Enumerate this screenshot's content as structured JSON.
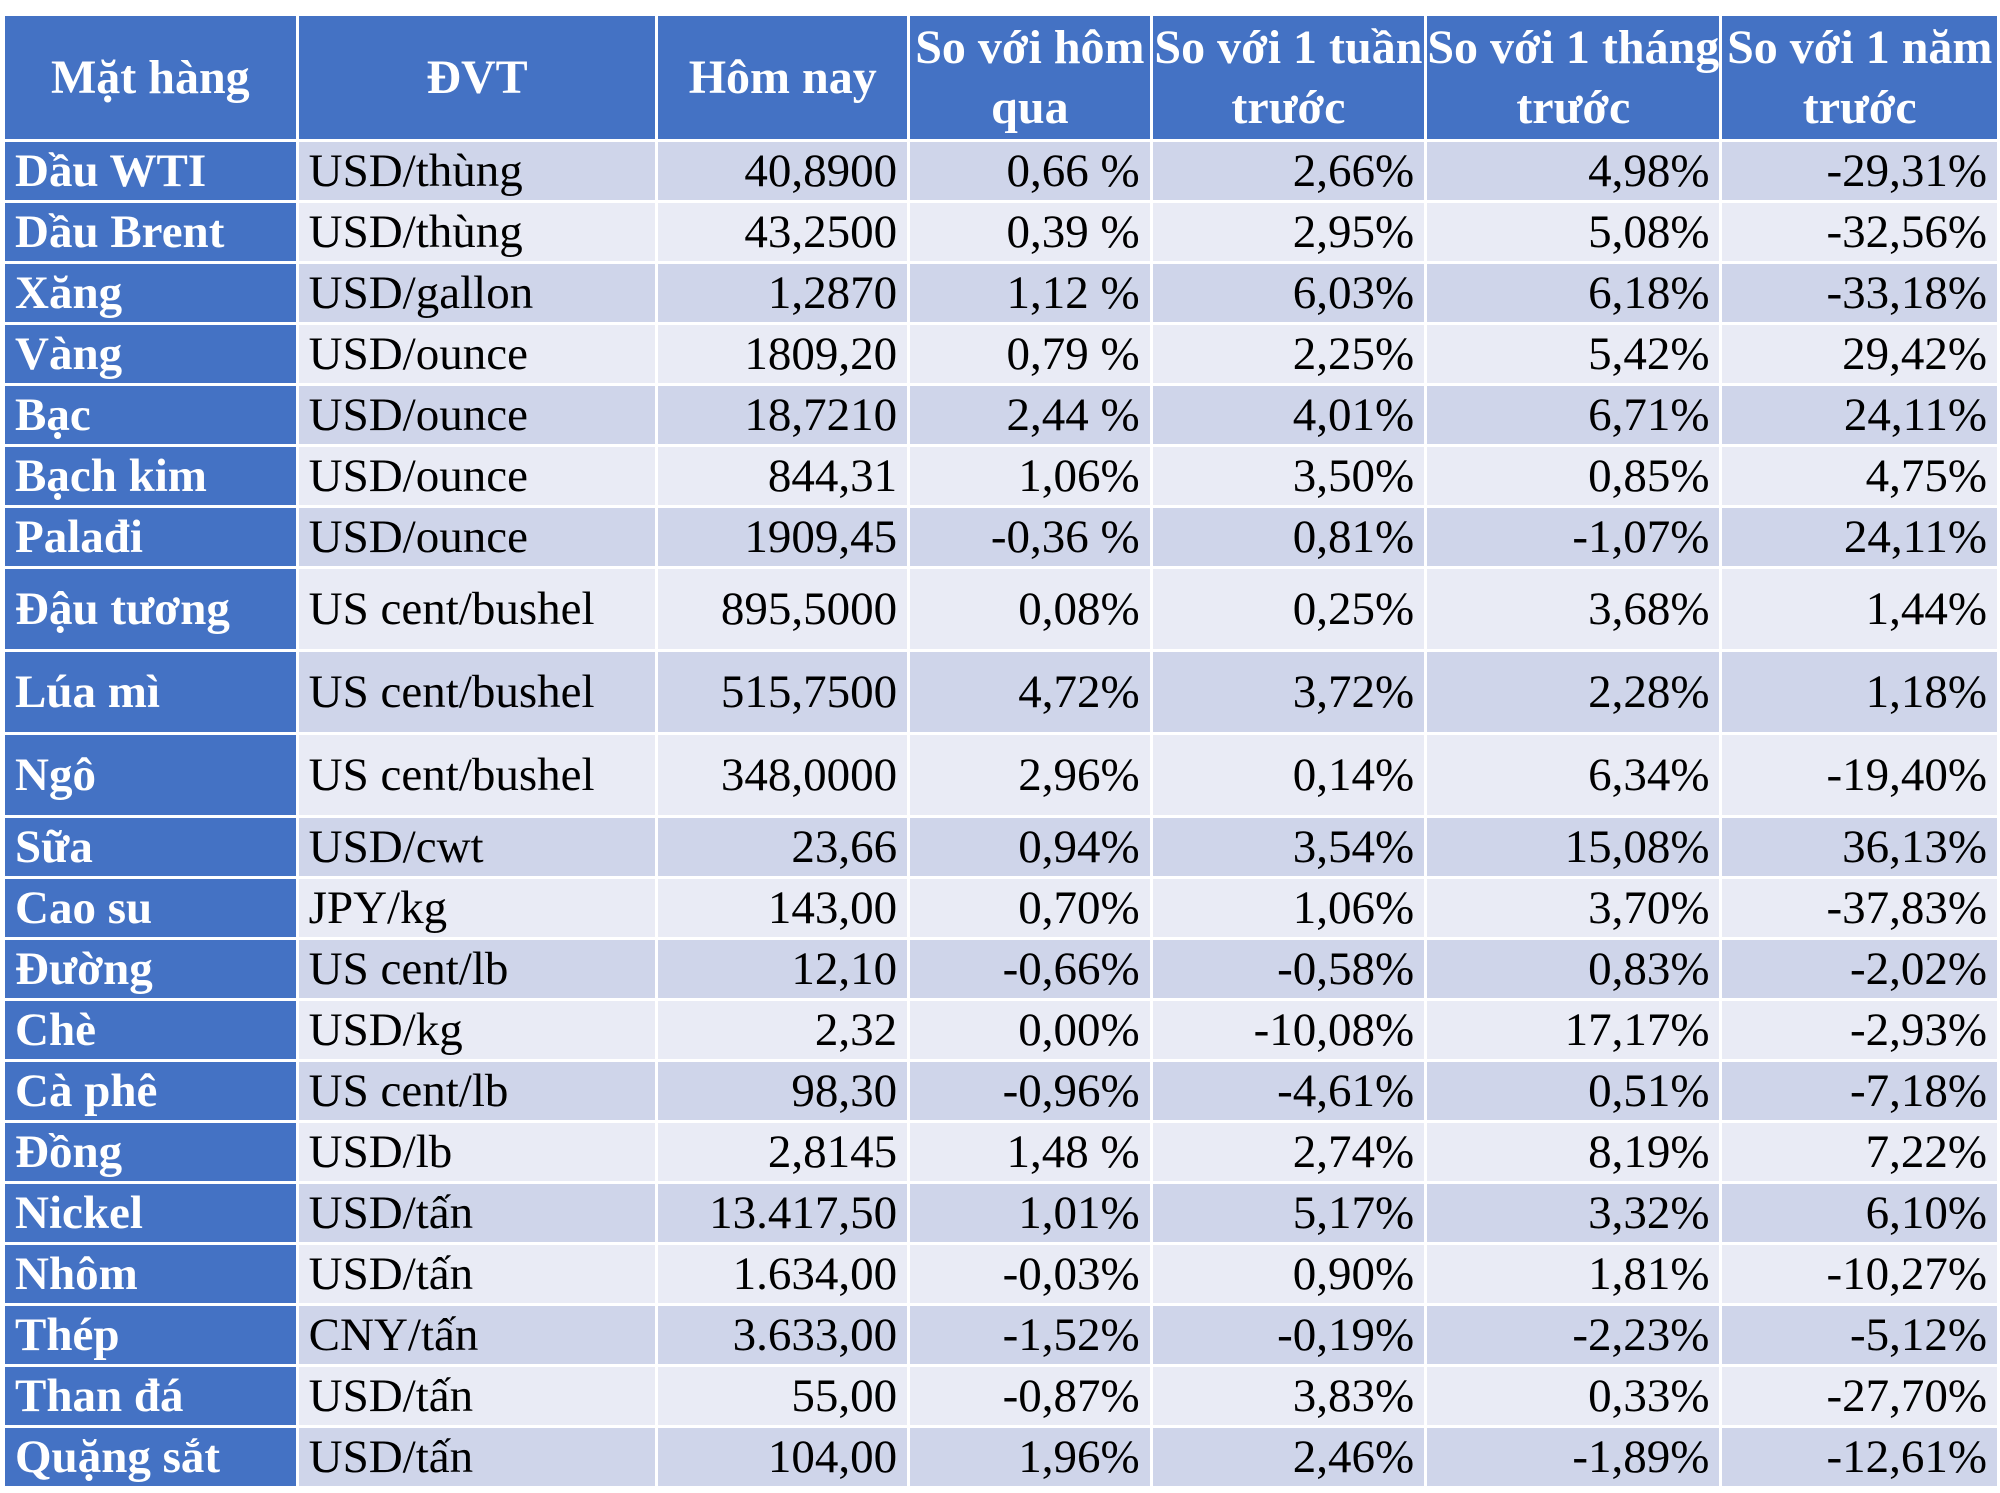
{
  "table": {
    "headers": [
      "Mặt hàng",
      "ĐVT",
      "Hôm nay",
      "So với hôm qua",
      "So với 1 tuần trước",
      "So với 1 tháng trước",
      "So với 1 năm trước"
    ],
    "rows": [
      [
        "Dầu WTI",
        "USD/thùng",
        "40,8900",
        "0,66 %",
        "2,66%",
        "4,98%",
        "-29,31%"
      ],
      [
        "Dầu Brent",
        "USD/thùng",
        "43,2500",
        "0,39 %",
        "2,95%",
        "5,08%",
        "-32,56%"
      ],
      [
        "Xăng",
        "USD/gallon",
        "1,2870",
        "1,12 %",
        "6,03%",
        "6,18%",
        "-33,18%"
      ],
      [
        "Vàng",
        "USD/ounce",
        "1809,20",
        "0,79 %",
        "2,25%",
        "5,42%",
        "29,42%"
      ],
      [
        "Bạc",
        "USD/ounce",
        "18,7210",
        "2,44 %",
        "4,01%",
        "6,71%",
        "24,11%"
      ],
      [
        "Bạch kim",
        "USD/ounce",
        "844,31",
        "1,06%",
        "3,50%",
        "0,85%",
        "4,75%"
      ],
      [
        "Palađi",
        "USD/ounce",
        "1909,45",
        "-0,36 %",
        "0,81%",
        "-1,07%",
        "24,11%"
      ],
      [
        "Đậu tương",
        "US cent/bushel",
        "895,5000",
        "0,08%",
        "0,25%",
        "3,68%",
        "1,44%"
      ],
      [
        "Lúa mì",
        "US cent/bushel",
        "515,7500",
        "4,72%",
        "3,72%",
        "2,28%",
        "1,18%"
      ],
      [
        "Ngô",
        "US cent/bushel",
        "348,0000",
        "2,96%",
        "0,14%",
        "6,34%",
        "-19,40%"
      ],
      [
        "Sữa",
        "USD/cwt",
        "23,66",
        "0,94%",
        "3,54%",
        "15,08%",
        "36,13%"
      ],
      [
        "Cao su",
        "JPY/kg",
        "143,00",
        "0,70%",
        "1,06%",
        "3,70%",
        "-37,83%"
      ],
      [
        "Đường",
        "US cent/lb",
        "12,10",
        "-0,66%",
        "-0,58%",
        "0,83%",
        "-2,02%"
      ],
      [
        "Chè",
        "USD/kg",
        "2,32",
        "0,00%",
        "-10,08%",
        "17,17%",
        "-2,93%"
      ],
      [
        "Cà phê",
        "US cent/lb",
        "98,30",
        "-0,96%",
        "-4,61%",
        "0,51%",
        "-7,18%"
      ],
      [
        "Đồng",
        "USD/lb",
        "2,8145",
        "1,48 %",
        "2,74%",
        "8,19%",
        "7,22%"
      ],
      [
        "Nickel",
        "USD/tấn",
        "13.417,50",
        "1,01%",
        "5,17%",
        "3,32%",
        "6,10%"
      ],
      [
        "Nhôm",
        "USD/tấn",
        "1.634,00",
        "-0,03%",
        "0,90%",
        "1,81%",
        "-10,27%"
      ],
      [
        "Thép",
        "CNY/tấn",
        "3.633,00",
        "-1,52%",
        "-0,19%",
        "-2,23%",
        "-5,12%"
      ],
      [
        "Than đá",
        "USD/tấn",
        "55,00",
        "-0,87%",
        "3,83%",
        "0,33%",
        "-27,70%"
      ],
      [
        "Quặng sắt",
        "USD/tấn",
        "104,00",
        "1,96%",
        "2,46%",
        "-1,89%",
        "-12,61%"
      ]
    ]
  },
  "colors": {
    "header_bg": "#4472c4",
    "row_odd_bg": "#cfd5ea",
    "row_even_bg": "#e9ebf5",
    "border": "#ffffff"
  }
}
